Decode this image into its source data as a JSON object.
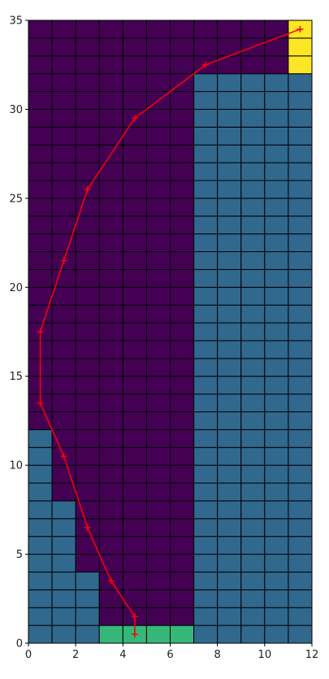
{
  "chart_data": {
    "type": "heatmap",
    "xlim": [
      0,
      12
    ],
    "ylim": [
      0,
      35
    ],
    "x_ticks": [
      0,
      2,
      4,
      6,
      8,
      10,
      12
    ],
    "y_ticks": [
      0,
      5,
      10,
      15,
      20,
      25,
      30,
      35
    ],
    "grid": true,
    "colors": {
      "background": "#440154",
      "region": "#31688e",
      "start": "#35b779",
      "goal": "#fde725",
      "cell_edge": "#000000",
      "path": "#ff0000"
    },
    "regions": [
      {
        "type": "region",
        "x_range": [
          0,
          1
        ],
        "y_range": [
          0,
          12
        ]
      },
      {
        "type": "region",
        "x_range": [
          1,
          2
        ],
        "y_range": [
          0,
          8
        ]
      },
      {
        "type": "region",
        "x_range": [
          2,
          3
        ],
        "y_range": [
          0,
          4
        ]
      },
      {
        "type": "region",
        "x_range": [
          0,
          3
        ],
        "y_range": [
          0,
          1
        ]
      },
      {
        "type": "region",
        "x_range": [
          7,
          12
        ],
        "y_range": [
          0,
          32
        ]
      },
      {
        "type": "start",
        "x_range": [
          3,
          7
        ],
        "y_range": [
          0,
          1
        ]
      },
      {
        "type": "goal",
        "x_range": [
          11,
          12
        ],
        "y_range": [
          32,
          35
        ]
      }
    ],
    "path": {
      "x": [
        4.5,
        4.5,
        3.5,
        2.5,
        1.5,
        0.5,
        0.5,
        1.5,
        2.5,
        4.5,
        7.5,
        11.5
      ],
      "y": [
        0.5,
        1.5,
        3.5,
        6.5,
        10.5,
        13.5,
        17.5,
        21.5,
        25.5,
        29.5,
        32.5,
        34.5
      ]
    }
  }
}
